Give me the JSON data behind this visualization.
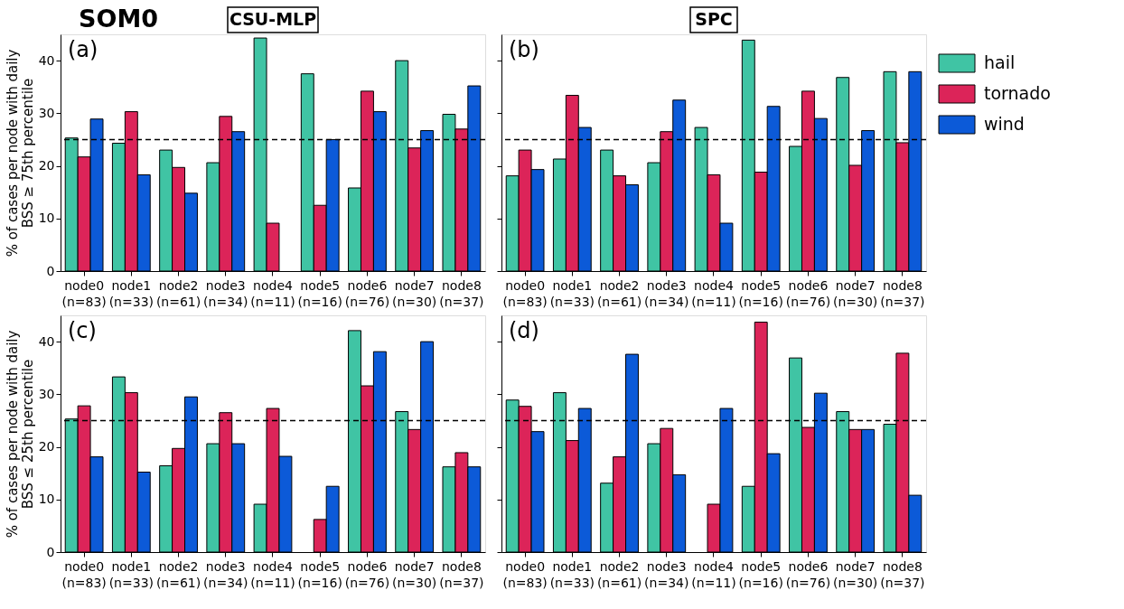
{
  "chart_data": [
    {
      "type": "bar",
      "title": "CSU-MLP",
      "annotations": [
        "SOM0",
        "(a)"
      ],
      "ylabel": "% of cases per node with daily\nBSS ≥ 75th percentile",
      "categories": [
        "node0 (n=83)",
        "node1 (n=33)",
        "node2 (n=61)",
        "node3 (n=34)",
        "node4 (n=11)",
        "node5 (n=16)",
        "node6 (n=76)",
        "node7 (n=30)",
        "node8 (n=37)"
      ],
      "series": [
        {
          "color": "#40c4a4",
          "values": [
            25.3,
            24.3,
            23.0,
            20.6,
            44.3,
            37.5,
            15.8,
            40.0,
            29.8
          ]
        },
        {
          "color": "#dc2459",
          "values": [
            21.7,
            30.3,
            19.7,
            29.4,
            9.1,
            12.5,
            34.2,
            23.4,
            27.0
          ]
        },
        {
          "color": "#0c5ad8",
          "values": [
            28.9,
            18.3,
            14.8,
            26.5,
            0,
            25.0,
            30.3,
            26.7,
            35.2
          ]
        }
      ],
      "ylim": [
        0,
        45
      ],
      "yticks": [
        0,
        10,
        20,
        30,
        40
      ],
      "grid": false,
      "legend": false,
      "ref_lines": [
        {
          "axis": "y",
          "value": 25,
          "color": "#000000",
          "line_style": "dashed"
        }
      ]
    },
    {
      "type": "bar",
      "title": "SPC",
      "annotations": [
        "(b)"
      ],
      "categories": [
        "node0 (n=83)",
        "node1 (n=33)",
        "node2 (n=61)",
        "node3 (n=34)",
        "node4 (n=11)",
        "node5 (n=16)",
        "node6 (n=76)",
        "node7 (n=30)",
        "node8 (n=37)"
      ],
      "series": [
        {
          "name": "hail",
          "color": "#40c4a4",
          "values": [
            18.1,
            21.3,
            23.0,
            20.6,
            27.3,
            43.9,
            23.7,
            36.8,
            37.9
          ]
        },
        {
          "name": "tornado",
          "color": "#dc2459",
          "values": [
            23.0,
            33.4,
            18.1,
            26.5,
            18.3,
            18.8,
            34.2,
            20.1,
            24.4
          ]
        },
        {
          "name": "wind",
          "color": "#0c5ad8",
          "values": [
            19.3,
            27.3,
            16.4,
            32.5,
            9.1,
            31.3,
            29.0,
            26.7,
            37.9
          ]
        }
      ],
      "ylim": [
        0,
        45
      ],
      "yticks": [
        0,
        10,
        20,
        30,
        40
      ],
      "tick_labels": "x",
      "grid": false,
      "legend": "right",
      "ref_lines": [
        {
          "axis": "y",
          "value": 25,
          "color": "#000000",
          "line_style": "dashed"
        }
      ]
    },
    {
      "type": "bar",
      "annotations": [
        "(c)"
      ],
      "ylabel": "% of cases per node with daily\nBSS ≤ 25th percentile",
      "categories": [
        "node0 (n=83)",
        "node1 (n=33)",
        "node2 (n=61)",
        "node3 (n=34)",
        "node4 (n=11)",
        "node5 (n=16)",
        "node6 (n=76)",
        "node7 (n=30)",
        "node8 (n=37)"
      ],
      "series": [
        {
          "color": "#40c4a4",
          "values": [
            25.3,
            33.3,
            16.4,
            20.6,
            9.1,
            0,
            42.1,
            26.7,
            16.2
          ]
        },
        {
          "color": "#dc2459",
          "values": [
            27.8,
            30.3,
            19.7,
            26.5,
            27.3,
            6.2,
            31.6,
            23.3,
            18.9
          ]
        },
        {
          "color": "#0c5ad8",
          "values": [
            18.1,
            15.2,
            29.5,
            20.6,
            18.2,
            12.5,
            38.1,
            40.0,
            16.2
          ]
        }
      ],
      "ylim": [
        0,
        45
      ],
      "yticks": [
        0,
        10,
        20,
        30,
        40
      ],
      "grid": false,
      "legend": false,
      "ref_lines": [
        {
          "axis": "y",
          "value": 25,
          "color": "#000000",
          "line_style": "dashed"
        }
      ]
    },
    {
      "type": "bar",
      "annotations": [
        "(d)"
      ],
      "categories": [
        "node0 (n=83)",
        "node1 (n=33)",
        "node2 (n=61)",
        "node3 (n=34)",
        "node4 (n=11)",
        "node5 (n=16)",
        "node6 (n=76)",
        "node7 (n=30)",
        "node8 (n=37)"
      ],
      "series": [
        {
          "color": "#40c4a4",
          "values": [
            28.9,
            30.3,
            13.1,
            20.6,
            0,
            12.5,
            36.9,
            26.7,
            24.3
          ]
        },
        {
          "color": "#dc2459",
          "values": [
            27.7,
            21.2,
            18.1,
            23.5,
            9.1,
            43.7,
            23.7,
            23.3,
            37.8
          ]
        },
        {
          "color": "#0c5ad8",
          "values": [
            22.9,
            27.3,
            37.6,
            14.7,
            27.3,
            18.7,
            30.2,
            23.3,
            10.8
          ]
        }
      ],
      "ylim": [
        0,
        45
      ],
      "yticks": [
        0,
        10,
        20,
        30,
        40
      ],
      "tick_labels": "x",
      "grid": false,
      "legend": false,
      "ref_lines": [
        {
          "axis": "y",
          "value": 25,
          "color": "#000000",
          "line_style": "dashed"
        }
      ]
    }
  ]
}
